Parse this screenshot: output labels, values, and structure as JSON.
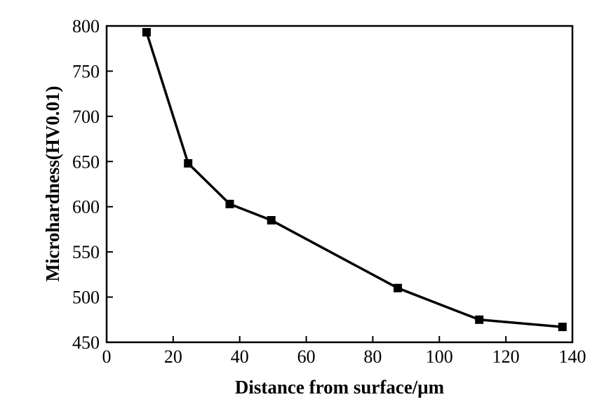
{
  "chart_data": {
    "type": "line",
    "xlabel": "Distance from surface/μm",
    "ylabel": "Microhardness(HV0.01)",
    "xlim": [
      0,
      140
    ],
    "ylim": [
      450,
      800
    ],
    "xticks": [
      0,
      20,
      40,
      60,
      80,
      100,
      120,
      140
    ],
    "yticks": [
      450,
      500,
      550,
      600,
      650,
      700,
      750,
      800
    ],
    "grid": false,
    "series": [
      {
        "x": [
          12,
          24.5,
          37,
          49.5,
          87.5,
          112,
          137
        ],
        "y": [
          793,
          648,
          603,
          585,
          510,
          475,
          467
        ],
        "color": "#000000",
        "marker": "square"
      }
    ]
  }
}
